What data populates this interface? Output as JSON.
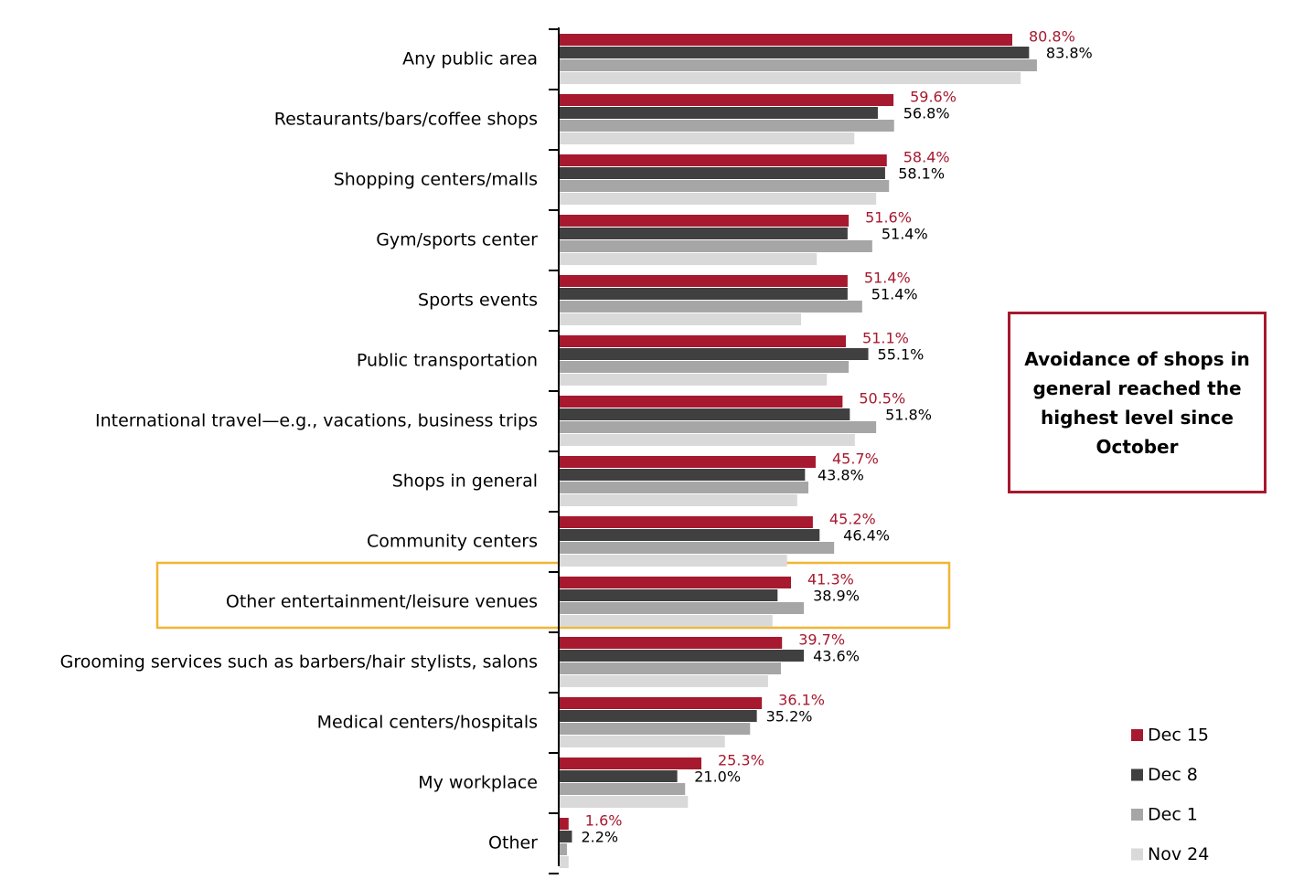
{
  "chart_data": {
    "type": "bar",
    "orientation": "horizontal",
    "categories": [
      "Any public area",
      "Restaurants/bars/coffee shops",
      "Shopping centers/malls",
      "Gym/sports center",
      "Sports events",
      "Public transportation",
      "International travel—e.g., vacations, business trips",
      "Shops in general",
      "Community centers",
      "Other entertainment/leisure venues",
      "Grooming services such as barbers/hair stylists, salons",
      "Medical centers/hospitals",
      "My workplace",
      "Other"
    ],
    "series": [
      {
        "name": "Dec 15",
        "color": "#a6192e",
        "values": [
          80.8,
          59.6,
          58.4,
          51.6,
          51.4,
          51.1,
          50.5,
          45.7,
          45.2,
          41.3,
          39.7,
          36.1,
          25.3,
          1.6
        ],
        "value_labels": [
          "80.8%",
          "59.6%",
          "58.4%",
          "51.6%",
          "51.4%",
          "51.1%",
          "50.5%",
          "45.7%",
          "45.2%",
          "41.3%",
          "39.7%",
          "36.1%",
          "25.3%",
          "1.6%"
        ]
      },
      {
        "name": "Dec 8",
        "color": "#404040",
        "values": [
          83.8,
          56.8,
          58.1,
          51.4,
          51.4,
          55.1,
          51.8,
          43.8,
          46.4,
          38.9,
          43.6,
          35.2,
          21.0,
          2.2
        ],
        "value_labels": [
          "83.8%",
          "56.8%",
          "58.1%",
          "51.4%",
          "51.4%",
          "55.1%",
          "51.8%",
          "43.8%",
          "46.4%",
          "38.9%",
          "43.6%",
          "35.2%",
          "21.0%",
          "2.2%"
        ]
      },
      {
        "name": "Dec 1",
        "color": "#a6a6a6",
        "values": [
          85.2,
          59.7,
          58.8,
          55.8,
          54.0,
          51.6,
          56.5,
          44.4,
          49.0,
          43.6,
          39.5,
          34.0,
          22.4,
          1.3
        ]
      },
      {
        "name": "Nov 24",
        "color": "#d9d9d9",
        "values": [
          82.3,
          52.6,
          56.5,
          45.9,
          43.1,
          47.7,
          52.7,
          42.4,
          40.6,
          38.0,
          37.2,
          29.5,
          22.9,
          1.6
        ]
      }
    ],
    "highlight_category": 9,
    "annotation": "Avoidance of shops in general reached the highest level since October",
    "highlight_color": "#f2b533",
    "annotation_color": "#a6192e"
  }
}
